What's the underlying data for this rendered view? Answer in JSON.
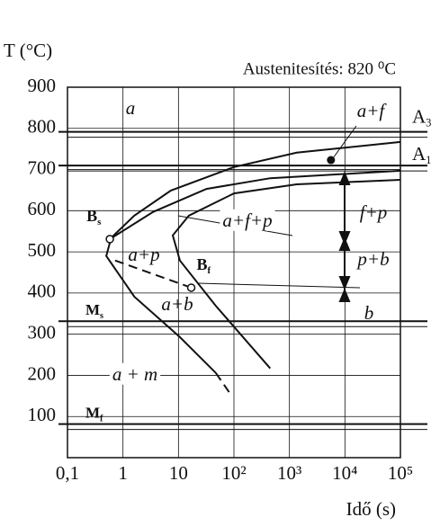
{
  "chart_data": {
    "type": "line",
    "title": "T (°C)",
    "subtitle": "Austenitesítés: 820 ⁰C",
    "x_label": "Idő (s)",
    "x_log": true,
    "grid": true,
    "xlim": [
      0.1,
      100000
    ],
    "ylim": [
      0,
      900
    ],
    "xticks": [
      {
        "value": 0.1,
        "label": "0,1"
      },
      1,
      10,
      {
        "value": 100,
        "label": "10²"
      },
      {
        "value": 1000,
        "label": "10³"
      },
      {
        "value": 10000,
        "label": "10⁴"
      },
      {
        "value": 100000,
        "label": "10⁵"
      }
    ],
    "yticks": [
      100,
      200,
      300,
      400,
      500,
      600,
      700,
      800,
      900
    ],
    "color": "#111",
    "series": [
      {
        "x": [
          0.58,
          1.6,
          7.3,
          100,
          1350,
          100000
        ],
        "values": [
          531,
          588,
          649,
          706,
          741,
          767
        ],
        "style": "solid"
      },
      {
        "x": [
          0.58,
          3.5,
          32,
          450,
          100000
        ],
        "values": [
          531,
          597,
          653,
          679,
          697
        ],
        "style": "solid"
      },
      {
        "x": [
          100000,
          1350,
          100,
          15.4,
          7.9,
          10.6,
          47,
          450
        ],
        "values": [
          675,
          664,
          642,
          588,
          540,
          479,
          369,
          217
        ],
        "style": "solid"
      },
      {
        "x": [
          0.58,
          0.5,
          1.6,
          10.6,
          47
        ],
        "values": [
          522,
          490,
          391,
          293,
          206
        ],
        "style": "solid"
      },
      {
        "x": [
          47,
          83
        ],
        "values": [
          206,
          158
        ],
        "style": "dashed"
      },
      {
        "x": [
          0.72,
          17
        ],
        "values": [
          479,
          413
        ],
        "style": "dashed"
      }
    ],
    "reference_lines": [
      {
        "name": "A",
        "sub": "3",
        "value": 785
      },
      {
        "name": "A",
        "sub": "1",
        "value": 703
      },
      {
        "name": "M",
        "sub": "s",
        "value": 325
      },
      {
        "name": "M",
        "sub": "f",
        "value": 75
      }
    ],
    "points": [
      {
        "name": "B",
        "sub": "s",
        "x": 0.58,
        "y": 531
      },
      {
        "name": "B",
        "sub": "f",
        "x": 17,
        "y": 413
      }
    ],
    "marker": {
      "x": 5600,
      "y": 723
    },
    "regions": [
      "a",
      "a+f",
      "a+f+p",
      "f+p",
      "p+b",
      "a+p",
      "a+b",
      "b",
      "a + m"
    ]
  }
}
